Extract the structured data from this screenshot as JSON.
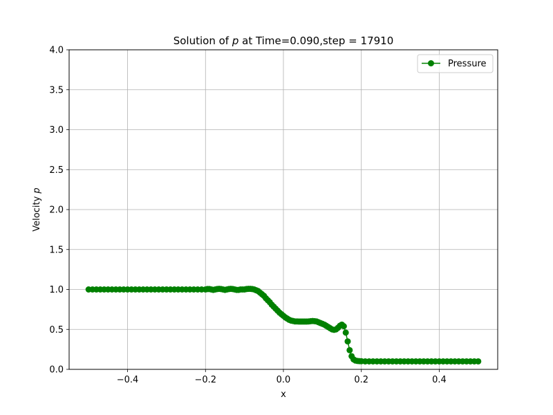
{
  "chart_data": {
    "type": "line",
    "title": "Solution of p at Time=0.090,step = 17910",
    "title_parts": {
      "prefix": "Solution of ",
      "symbol": "p",
      "suffix": " at Time=0.090,step = 17910"
    },
    "xlabel": "x",
    "ylabel": "Velocity p",
    "ylabel_parts": {
      "prefix": "Velocity ",
      "symbol": "p"
    },
    "xlim": [
      -0.55,
      0.55
    ],
    "ylim": [
      0.0,
      4.0
    ],
    "xticks": [
      -0.4,
      -0.2,
      0.0,
      0.2,
      0.4
    ],
    "xtick_labels": [
      "−0.4",
      "−0.2",
      "0.0",
      "0.2",
      "0.4"
    ],
    "yticks": [
      0.0,
      0.5,
      1.0,
      1.5,
      2.0,
      2.5,
      3.0,
      3.5,
      4.0
    ],
    "ytick_labels": [
      "0.0",
      "0.5",
      "1.0",
      "1.5",
      "2.0",
      "2.5",
      "3.0",
      "3.5",
      "4.0"
    ],
    "grid": true,
    "legend_position": "top-right",
    "series": [
      {
        "name": "Pressure",
        "color": "#008000",
        "marker": "circle",
        "points": [
          [
            -0.5,
            1.0
          ],
          [
            -0.49,
            1.0
          ],
          [
            -0.48,
            1.0
          ],
          [
            -0.47,
            1.0
          ],
          [
            -0.46,
            1.0
          ],
          [
            -0.45,
            1.0
          ],
          [
            -0.44,
            1.0
          ],
          [
            -0.43,
            1.0
          ],
          [
            -0.42,
            1.0
          ],
          [
            -0.41,
            1.0
          ],
          [
            -0.4,
            1.0
          ],
          [
            -0.39,
            1.0
          ],
          [
            -0.38,
            1.0
          ],
          [
            -0.37,
            1.0
          ],
          [
            -0.36,
            1.0
          ],
          [
            -0.35,
            1.0
          ],
          [
            -0.34,
            1.0
          ],
          [
            -0.33,
            1.0
          ],
          [
            -0.32,
            1.0
          ],
          [
            -0.31,
            1.0
          ],
          [
            -0.3,
            1.0
          ],
          [
            -0.29,
            1.0
          ],
          [
            -0.28,
            1.0
          ],
          [
            -0.27,
            1.0
          ],
          [
            -0.26,
            1.0
          ],
          [
            -0.25,
            1.0
          ],
          [
            -0.24,
            1.0
          ],
          [
            -0.23,
            1.0
          ],
          [
            -0.22,
            1.0
          ],
          [
            -0.21,
            1.0
          ],
          [
            -0.2,
            1.0
          ],
          [
            -0.195,
            1.005
          ],
          [
            -0.19,
            1.005
          ],
          [
            -0.185,
            1.0
          ],
          [
            -0.18,
            0.995
          ],
          [
            -0.175,
            1.0
          ],
          [
            -0.17,
            1.005
          ],
          [
            -0.165,
            1.008
          ],
          [
            -0.16,
            1.005
          ],
          [
            -0.155,
            1.0
          ],
          [
            -0.15,
            0.995
          ],
          [
            -0.145,
            1.0
          ],
          [
            -0.14,
            1.005
          ],
          [
            -0.135,
            1.008
          ],
          [
            -0.13,
            1.005
          ],
          [
            -0.125,
            1.0
          ],
          [
            -0.12,
            0.995
          ],
          [
            -0.115,
            0.995
          ],
          [
            -0.11,
            1.0
          ],
          [
            -0.105,
            1.0
          ],
          [
            -0.1,
            1.0
          ],
          [
            -0.095,
            1.005
          ],
          [
            -0.09,
            1.008
          ],
          [
            -0.085,
            1.008
          ],
          [
            -0.08,
            1.005
          ],
          [
            -0.075,
            1.0
          ],
          [
            -0.07,
            0.99
          ],
          [
            -0.065,
            0.98
          ],
          [
            -0.06,
            0.96
          ],
          [
            -0.055,
            0.94
          ],
          [
            -0.05,
            0.92
          ],
          [
            -0.045,
            0.89
          ],
          [
            -0.04,
            0.865
          ],
          [
            -0.035,
            0.84
          ],
          [
            -0.03,
            0.81
          ],
          [
            -0.025,
            0.785
          ],
          [
            -0.02,
            0.76
          ],
          [
            -0.015,
            0.735
          ],
          [
            -0.01,
            0.71
          ],
          [
            -0.005,
            0.69
          ],
          [
            0.0,
            0.67
          ],
          [
            0.005,
            0.65
          ],
          [
            0.01,
            0.635
          ],
          [
            0.015,
            0.62
          ],
          [
            0.02,
            0.61
          ],
          [
            0.025,
            0.605
          ],
          [
            0.03,
            0.6
          ],
          [
            0.035,
            0.6
          ],
          [
            0.04,
            0.598
          ],
          [
            0.045,
            0.598
          ],
          [
            0.05,
            0.598
          ],
          [
            0.055,
            0.598
          ],
          [
            0.06,
            0.598
          ],
          [
            0.065,
            0.6
          ],
          [
            0.07,
            0.603
          ],
          [
            0.075,
            0.605
          ],
          [
            0.08,
            0.603
          ],
          [
            0.085,
            0.6
          ],
          [
            0.09,
            0.59
          ],
          [
            0.095,
            0.58
          ],
          [
            0.1,
            0.57
          ],
          [
            0.105,
            0.56
          ],
          [
            0.11,
            0.545
          ],
          [
            0.115,
            0.53
          ],
          [
            0.12,
            0.515
          ],
          [
            0.125,
            0.5
          ],
          [
            0.13,
            0.495
          ],
          [
            0.135,
            0.5
          ],
          [
            0.14,
            0.52
          ],
          [
            0.145,
            0.545
          ],
          [
            0.15,
            0.56
          ],
          [
            0.155,
            0.54
          ],
          [
            0.16,
            0.46
          ],
          [
            0.165,
            0.35
          ],
          [
            0.17,
            0.24
          ],
          [
            0.175,
            0.165
          ],
          [
            0.18,
            0.125
          ],
          [
            0.185,
            0.11
          ],
          [
            0.19,
            0.105
          ],
          [
            0.195,
            0.103
          ],
          [
            0.2,
            0.102
          ],
          [
            0.21,
            0.1
          ],
          [
            0.22,
            0.1
          ],
          [
            0.23,
            0.1
          ],
          [
            0.24,
            0.1
          ],
          [
            0.25,
            0.1
          ],
          [
            0.26,
            0.1
          ],
          [
            0.27,
            0.1
          ],
          [
            0.28,
            0.1
          ],
          [
            0.29,
            0.1
          ],
          [
            0.3,
            0.1
          ],
          [
            0.31,
            0.1
          ],
          [
            0.32,
            0.1
          ],
          [
            0.33,
            0.1
          ],
          [
            0.34,
            0.1
          ],
          [
            0.35,
            0.1
          ],
          [
            0.36,
            0.1
          ],
          [
            0.37,
            0.1
          ],
          [
            0.38,
            0.1
          ],
          [
            0.39,
            0.1
          ],
          [
            0.4,
            0.1
          ],
          [
            0.41,
            0.1
          ],
          [
            0.42,
            0.1
          ],
          [
            0.43,
            0.1
          ],
          [
            0.44,
            0.1
          ],
          [
            0.45,
            0.1
          ],
          [
            0.46,
            0.1
          ],
          [
            0.47,
            0.1
          ],
          [
            0.48,
            0.1
          ],
          [
            0.49,
            0.1
          ],
          [
            0.5,
            0.1
          ]
        ]
      }
    ]
  }
}
